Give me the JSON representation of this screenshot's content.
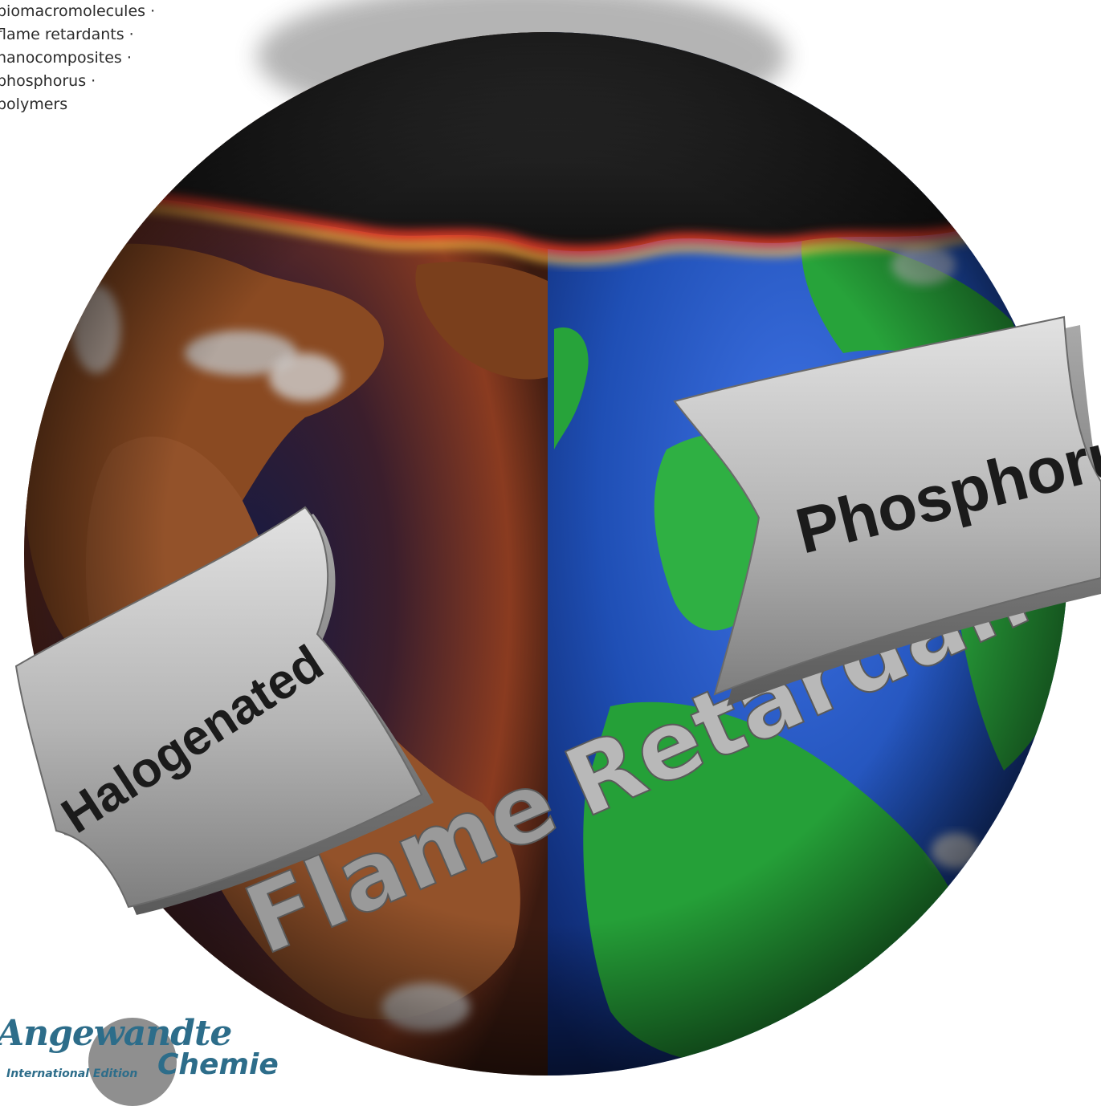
{
  "keywords": [
    "biomacromolecules ·",
    "flame retardants ·",
    "nanocomposites ·",
    "phosphorus ·",
    "polymers"
  ],
  "banners": {
    "left": "Halogenated",
    "right": "Phosphorus"
  },
  "arc_text": {
    "word1": "Flame",
    "word2": "Retardants"
  },
  "logo": {
    "name": "Angewandte",
    "edition": "International Edition",
    "sub": "Chemie"
  },
  "colors": {
    "logo_blue": "#2d6d8a",
    "earth_blue": "#1f4fb5",
    "earth_green": "#27a33a",
    "rust": "#8a4a22",
    "char": "#1a1a1a",
    "flame": "#ff6a1a"
  }
}
